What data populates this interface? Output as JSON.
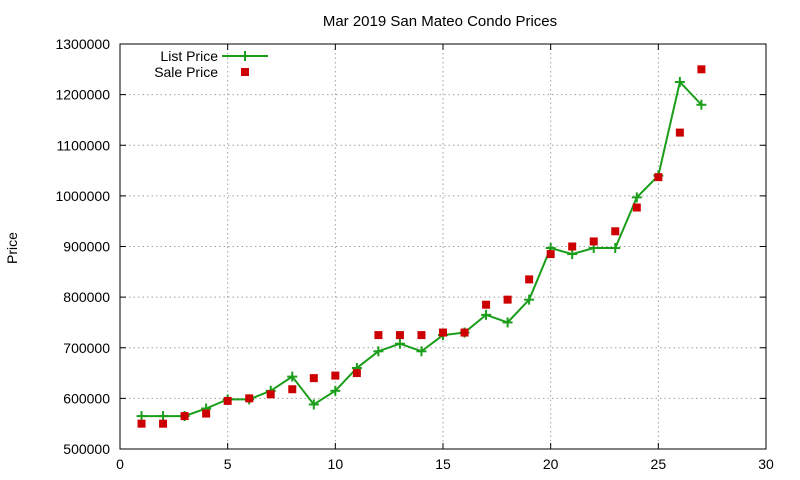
{
  "chart_data": {
    "type": "line",
    "title": "Mar 2019 San Mateo Condo Prices",
    "xlabel": "",
    "ylabel": "Price",
    "xlim": [
      0,
      30
    ],
    "ylim": [
      500000,
      1300000
    ],
    "x_ticks": [
      0,
      5,
      10,
      15,
      20,
      25,
      30
    ],
    "y_ticks": [
      500000,
      600000,
      700000,
      800000,
      900000,
      1000000,
      1100000,
      1200000,
      1300000
    ],
    "grid": true,
    "legend_position": "top-left",
    "series": [
      {
        "name": "List Price",
        "style": "line+cross",
        "color": "#1a9e1a",
        "x": [
          1,
          2,
          3,
          4,
          5,
          6,
          7,
          8,
          9,
          10,
          11,
          12,
          13,
          14,
          15,
          16,
          17,
          18,
          19,
          20,
          21,
          22,
          23,
          24,
          25,
          26,
          27
        ],
        "values": [
          565000,
          565000,
          565000,
          580000,
          598000,
          598000,
          615000,
          643000,
          588000,
          615000,
          660000,
          693000,
          708000,
          693000,
          725000,
          730000,
          765000,
          750000,
          795000,
          897000,
          885000,
          897000,
          897000,
          997000,
          1040000,
          1225000,
          1180000
        ]
      },
      {
        "name": "Sale Price",
        "style": "square",
        "color": "#cc0000",
        "x": [
          1,
          2,
          3,
          4,
          5,
          6,
          7,
          8,
          9,
          10,
          11,
          12,
          13,
          14,
          15,
          16,
          17,
          18,
          19,
          20,
          21,
          22,
          23,
          24,
          25,
          26,
          27
        ],
        "values": [
          550000,
          550000,
          565000,
          570000,
          595000,
          600000,
          608000,
          618000,
          640000,
          645000,
          650000,
          725000,
          725000,
          725000,
          730000,
          730000,
          785000,
          795000,
          835000,
          885000,
          900000,
          910000,
          930000,
          977000,
          1037000,
          1125000,
          1250000
        ]
      }
    ]
  }
}
